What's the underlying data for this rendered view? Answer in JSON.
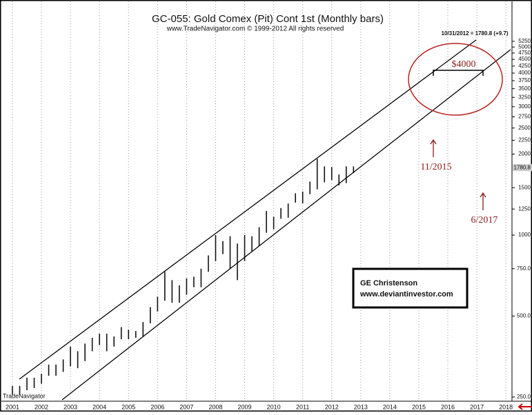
{
  "chart_data": {
    "type": "range-bar",
    "title": "GC-055:  Gold Comex (Pit) Cont 1st  (Monthly bars)",
    "subtitle": "www.TradeNavigator.com © 1999-2012 All rights reserved",
    "last_note": "10/31/2012 = 1780.8 (+9.7)",
    "last_price": 1780.8,
    "watermark": "TradeNavigator",
    "annotations": [
      "$4000",
      "11/2015",
      "6/2017"
    ],
    "credit": [
      "GE Christenson",
      "www.deviantinvestor.com"
    ],
    "color": "#111111",
    "log_scale": true,
    "grid": true,
    "x": [
      2001,
      2001.25,
      2001.5,
      2001.75,
      2002,
      2002.25,
      2002.5,
      2002.75,
      2003,
      2003.25,
      2003.5,
      2003.75,
      2004,
      2004.25,
      2004.5,
      2004.75,
      2005,
      2005.25,
      2005.5,
      2005.75,
      2006,
      2006.25,
      2006.5,
      2006.75,
      2007,
      2007.25,
      2007.5,
      2007.75,
      2008,
      2008.25,
      2008.5,
      2008.75,
      2009,
      2009.25,
      2009.5,
      2009.75,
      2010,
      2010.25,
      2010.5,
      2010.75,
      2011,
      2011.25,
      2011.5,
      2011.75,
      2012,
      2012.25,
      2012.5,
      2012.75
    ],
    "series": [
      {
        "name": "high",
        "values": [
          275,
          275,
          295,
          295,
          305,
          330,
          330,
          345,
          385,
          370,
          395,
          415,
          430,
          430,
          420,
          455,
          445,
          440,
          475,
          540,
          590,
          730,
          680,
          650,
          690,
          700,
          750,
          840,
          1000,
          950,
          990,
          930,
          1000,
          990,
          1070,
          1230,
          1170,
          1260,
          1310,
          1430,
          1450,
          1580,
          1920,
          1800,
          1790,
          1680,
          1800,
          1800
        ]
      },
      {
        "name": "low",
        "values": [
          255,
          255,
          265,
          270,
          280,
          300,
          300,
          310,
          325,
          320,
          340,
          370,
          390,
          370,
          385,
          410,
          410,
          415,
          420,
          470,
          520,
          570,
          560,
          560,
          600,
          640,
          640,
          730,
          800,
          850,
          750,
          680,
          800,
          870,
          910,
          1020,
          1050,
          1150,
          1160,
          1320,
          1310,
          1420,
          1480,
          1570,
          1600,
          1530,
          1560,
          1700
        ]
      }
    ],
    "xlim": [
      2000.62,
      2018.21
    ],
    "xticks": [
      2001,
      2002,
      2003,
      2004,
      2005,
      2006,
      2007,
      2008,
      2009,
      2010,
      2011,
      2012,
      2013,
      2014,
      2015,
      2016,
      2017,
      2018
    ],
    "ylim": [
      237,
      7260
    ],
    "yticks": [
      {
        "value": 250,
        "label": "250.0"
      },
      {
        "value": 500,
        "label": "500.0"
      },
      {
        "value": 750,
        "label": "750.0"
      },
      1000,
      1250,
      1500,
      2000,
      2250,
      2500,
      2750,
      3000,
      3250,
      3500,
      3750,
      4000,
      4250,
      4500,
      4750,
      5000,
      5250
    ]
  }
}
